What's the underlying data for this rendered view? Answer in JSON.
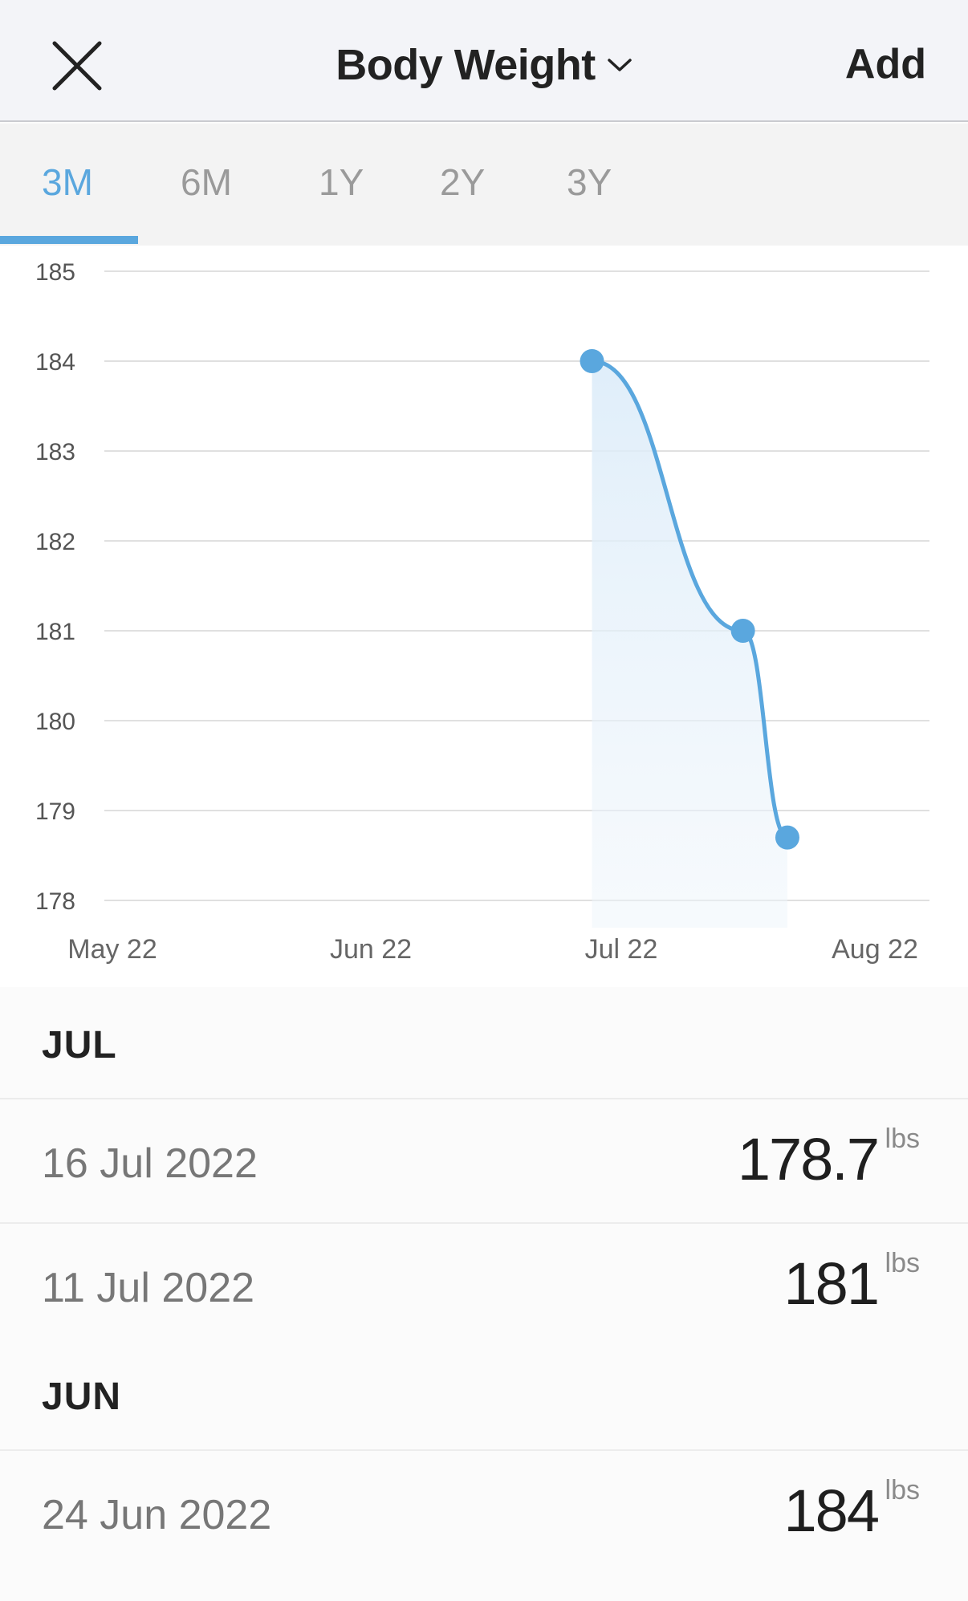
{
  "header": {
    "title": "Body Weight",
    "add_label": "Add"
  },
  "icons": {
    "close": "close-icon",
    "chevron": "chevron-down-icon"
  },
  "tabs": [
    {
      "label": "3M",
      "active": true
    },
    {
      "label": "6M",
      "active": false
    },
    {
      "label": "1Y",
      "active": false
    },
    {
      "label": "2Y",
      "active": false
    },
    {
      "label": "3Y",
      "active": false
    }
  ],
  "colors": {
    "accent": "#5aa7de",
    "fill": "#e4f1fb"
  },
  "chart_data": {
    "type": "line",
    "y_ticks": [
      "185",
      "184",
      "183",
      "182",
      "181",
      "180",
      "179",
      "178"
    ],
    "ylim": [
      178,
      185
    ],
    "x_ticks": [
      "May 22",
      "Jun 22",
      "Jul 22",
      "Aug 22"
    ],
    "xlim": [
      "2022-05-01",
      "2022-08-01"
    ],
    "grid": true,
    "series": [
      {
        "points": [
          {
            "x": "2022-06-24",
            "y": 184
          },
          {
            "x": "2022-07-11",
            "y": 181
          },
          {
            "x": "2022-07-16",
            "y": 178.7
          }
        ]
      }
    ]
  },
  "log": {
    "unit": "lbs",
    "months": [
      {
        "label": "JUL",
        "entries": [
          {
            "date": "16 Jul 2022",
            "value": "178.7"
          },
          {
            "date": "11 Jul 2022",
            "value": "181"
          }
        ]
      },
      {
        "label": "JUN",
        "entries": [
          {
            "date": "24 Jun 2022",
            "value": "184"
          }
        ]
      }
    ]
  }
}
